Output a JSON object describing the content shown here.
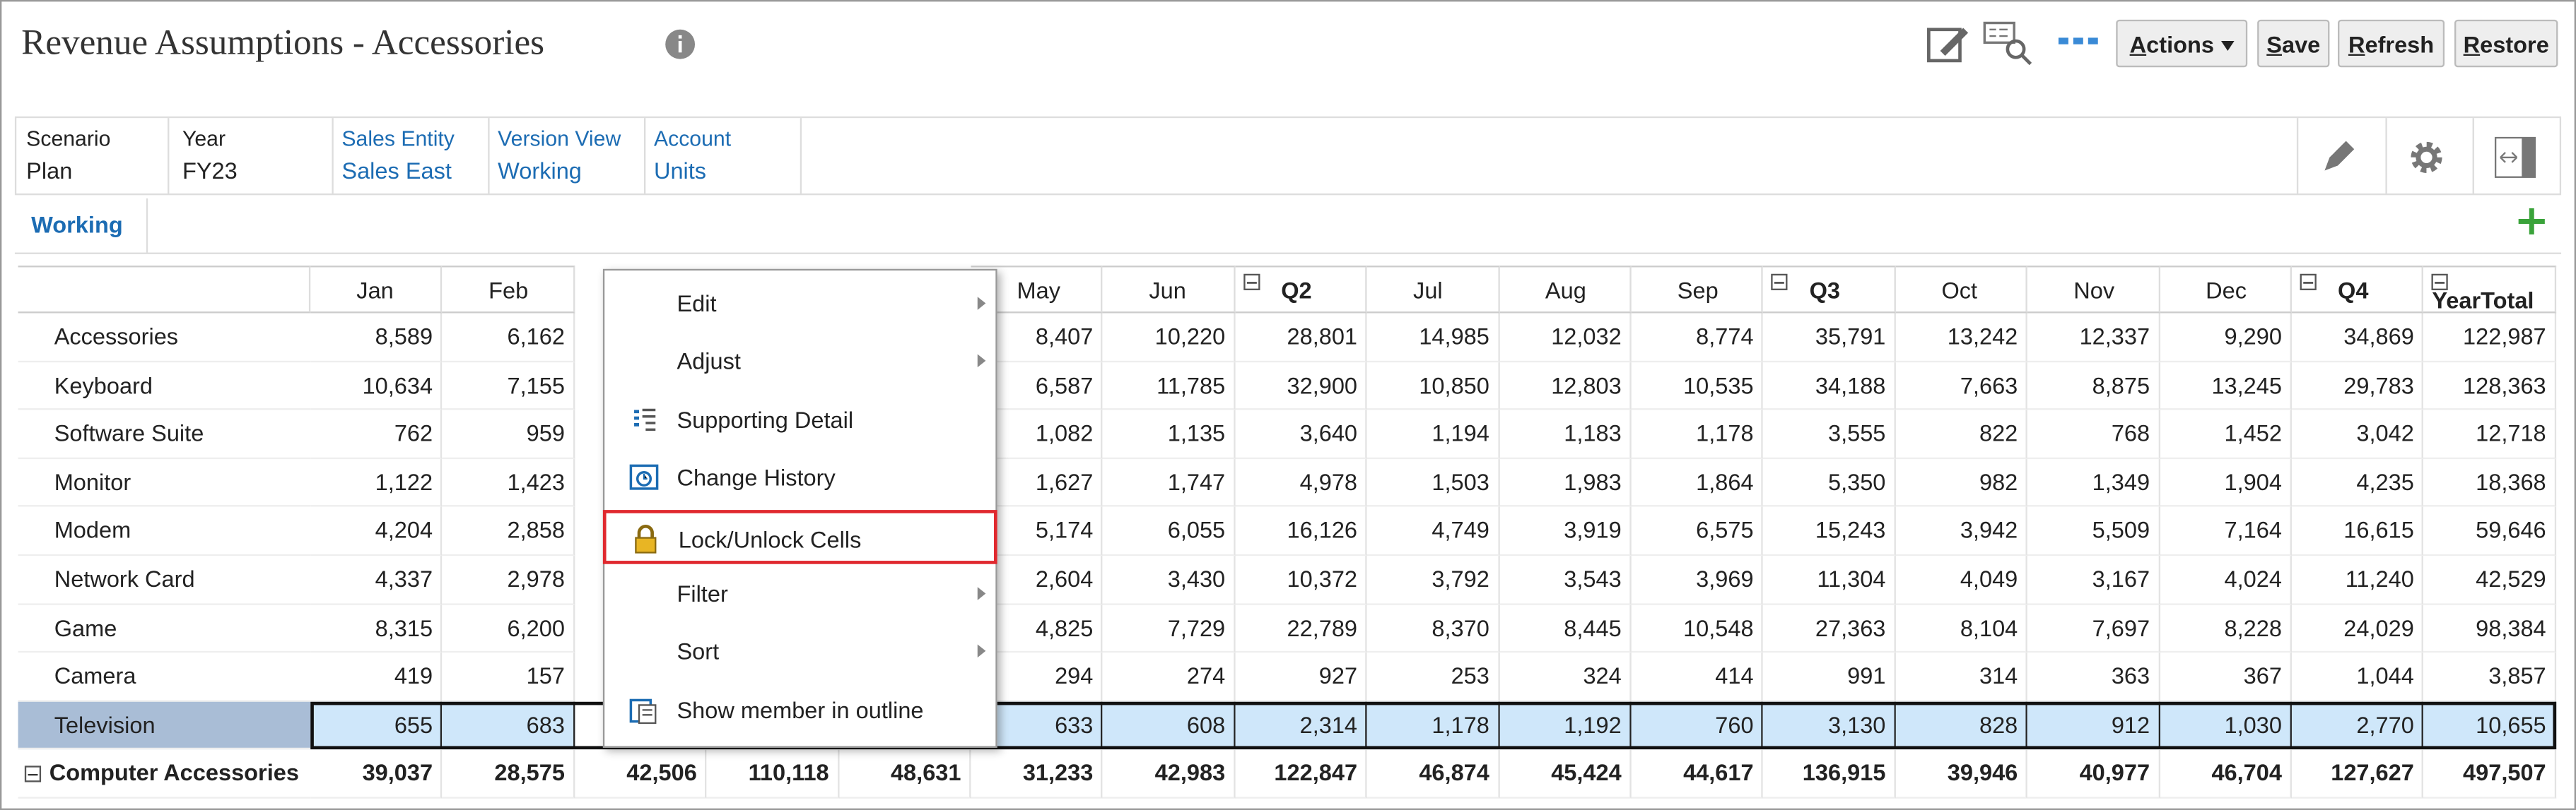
{
  "header": {
    "title": "Revenue Assumptions - Accessories",
    "buttons": [
      "Actions",
      "Save",
      "Refresh",
      "Restore"
    ]
  },
  "pov": [
    {
      "label": "Scenario",
      "value": "Plan"
    },
    {
      "label": "Year",
      "value": "FY23"
    },
    {
      "label": "Sales Entity",
      "value": "Sales East"
    },
    {
      "label": "Version View",
      "value": "Working"
    },
    {
      "label": "Account",
      "value": "Units"
    }
  ],
  "tab": "Working",
  "table": {
    "columns": [
      "Jan",
      "Feb",
      null,
      null,
      null,
      "May",
      "Jun",
      "Q2",
      "Jul",
      "Aug",
      "Sep",
      "Q3",
      "Oct",
      "Nov",
      "Dec",
      "Q4",
      "YearTotal"
    ],
    "rows": [
      {
        "label": "Accessories",
        "cells": [
          "8,589",
          "6,162",
          null,
          null,
          null,
          "8,407",
          "10,220",
          "28,801",
          "14,985",
          "12,032",
          "8,774",
          "35,791",
          "13,242",
          "12,337",
          "9,290",
          "34,869",
          "122,987"
        ]
      },
      {
        "label": "Keyboard",
        "cells": [
          "10,634",
          "7,155",
          null,
          null,
          null,
          "6,587",
          "11,785",
          "32,900",
          "10,850",
          "12,803",
          "10,535",
          "34,188",
          "7,663",
          "8,875",
          "13,245",
          "29,783",
          "128,363"
        ]
      },
      {
        "label": "Software Suite",
        "cells": [
          "762",
          "959",
          null,
          null,
          null,
          "1,082",
          "1,135",
          "3,640",
          "1,194",
          "1,183",
          "1,178",
          "3,555",
          "822",
          "768",
          "1,452",
          "3,042",
          "12,718"
        ]
      },
      {
        "label": "Monitor",
        "cells": [
          "1,122",
          "1,423",
          null,
          null,
          null,
          "1,627",
          "1,747",
          "4,978",
          "1,503",
          "1,983",
          "1,864",
          "5,350",
          "982",
          "1,349",
          "1,904",
          "4,235",
          "18,368"
        ]
      },
      {
        "label": "Modem",
        "cells": [
          "4,204",
          "2,858",
          null,
          null,
          null,
          "5,174",
          "6,055",
          "16,126",
          "4,749",
          "3,919",
          "6,575",
          "15,243",
          "3,942",
          "5,509",
          "7,164",
          "16,615",
          "59,646"
        ]
      },
      {
        "label": "Network Card",
        "cells": [
          "4,337",
          "2,978",
          null,
          null,
          null,
          "2,604",
          "3,430",
          "10,372",
          "3,792",
          "3,543",
          "3,969",
          "11,304",
          "4,049",
          "3,167",
          "4,024",
          "11,240",
          "42,529"
        ]
      },
      {
        "label": "Game",
        "cells": [
          "8,315",
          "6,200",
          null,
          null,
          null,
          "4,825",
          "7,729",
          "22,789",
          "8,370",
          "8,445",
          "10,548",
          "27,363",
          "8,104",
          "7,697",
          "8,228",
          "24,029",
          "98,384"
        ]
      },
      {
        "label": "Camera",
        "cells": [
          "419",
          "157",
          null,
          null,
          null,
          "294",
          "274",
          "927",
          "253",
          "324",
          "414",
          "991",
          "314",
          "363",
          "367",
          "1,044",
          "3,857"
        ]
      },
      {
        "label": "Television",
        "cells": [
          "655",
          "683",
          null,
          null,
          null,
          "633",
          "608",
          "2,314",
          "1,178",
          "1,192",
          "760",
          "3,130",
          "828",
          "912",
          "1,030",
          "2,770",
          "10,655"
        ]
      },
      {
        "label": "Computer Accessories",
        "cells": [
          "39,037",
          "28,575",
          "42,506",
          "110,118",
          "48,631",
          "31,233",
          "42,983",
          "122,847",
          "46,874",
          "45,424",
          "44,617",
          "136,915",
          "39,946",
          "40,977",
          "46,704",
          "127,627",
          "497,507"
        ]
      }
    ]
  },
  "context_menu": {
    "items": [
      "Edit",
      "Adjust",
      "Supporting Detail",
      "Change History",
      "Lock/Unlock Cells",
      "Filter",
      "Sort",
      "Show member in outline"
    ],
    "highlighted": 4
  }
}
